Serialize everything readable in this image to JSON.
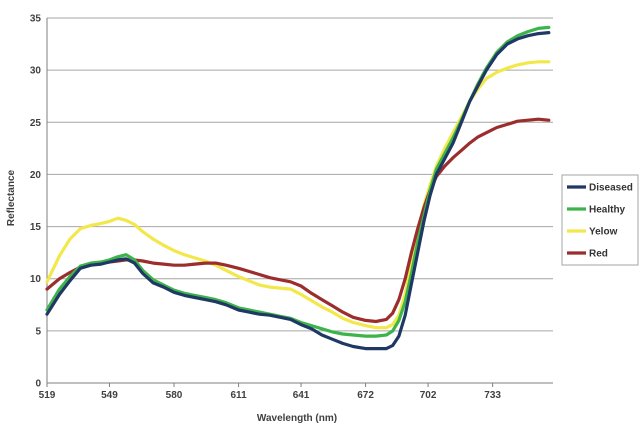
{
  "chart_data": {
    "type": "line",
    "title": "",
    "xlabel": "Wavelength (nm)",
    "ylabel": "Reflectance",
    "xlim": [
      519,
      762
    ],
    "ylim": [
      0,
      35
    ],
    "x_ticks": [
      519,
      549,
      580,
      611,
      641,
      672,
      702,
      733
    ],
    "y_ticks": [
      0,
      5,
      10,
      15,
      20,
      25,
      30,
      35
    ],
    "grid": "horizontal",
    "legend_position": "right",
    "series": [
      {
        "name": "Diseased",
        "color": "#1f3864",
        "x": [
          519,
          525,
          530,
          535,
          540,
          545,
          549,
          553,
          557,
          561,
          565,
          570,
          575,
          580,
          585,
          590,
          595,
          600,
          605,
          611,
          616,
          621,
          626,
          631,
          636,
          641,
          646,
          651,
          656,
          661,
          666,
          672,
          677,
          682,
          685,
          688,
          691,
          694,
          697,
          700,
          703,
          706,
          710,
          714,
          718,
          722,
          726,
          730,
          735,
          740,
          745,
          750,
          755,
          760
        ],
        "y": [
          6.6,
          8.5,
          9.8,
          11.0,
          11.3,
          11.4,
          11.6,
          11.8,
          11.9,
          11.5,
          10.5,
          9.6,
          9.2,
          8.7,
          8.4,
          8.2,
          8.0,
          7.8,
          7.5,
          7.0,
          6.8,
          6.6,
          6.5,
          6.3,
          6.1,
          5.6,
          5.2,
          4.6,
          4.2,
          3.8,
          3.5,
          3.3,
          3.3,
          3.3,
          3.6,
          4.5,
          6.5,
          9.5,
          12.5,
          15.5,
          18.0,
          20.0,
          21.5,
          23.0,
          25.0,
          27.0,
          28.5,
          30.0,
          31.5,
          32.5,
          33.0,
          33.3,
          33.5,
          33.6
        ]
      },
      {
        "name": "Healthy",
        "color": "#3cb44b",
        "x": [
          519,
          525,
          530,
          535,
          540,
          545,
          549,
          553,
          557,
          561,
          565,
          570,
          575,
          580,
          585,
          590,
          595,
          600,
          605,
          611,
          616,
          621,
          626,
          631,
          636,
          641,
          646,
          651,
          656,
          661,
          666,
          672,
          677,
          682,
          685,
          688,
          691,
          694,
          697,
          700,
          703,
          706,
          710,
          714,
          718,
          722,
          726,
          730,
          735,
          740,
          745,
          750,
          755,
          760
        ],
        "y": [
          7.0,
          9.0,
          10.2,
          11.2,
          11.5,
          11.6,
          11.8,
          12.1,
          12.3,
          11.8,
          10.8,
          9.9,
          9.4,
          8.9,
          8.6,
          8.4,
          8.2,
          8.0,
          7.7,
          7.2,
          7.0,
          6.8,
          6.6,
          6.4,
          6.2,
          5.8,
          5.5,
          5.2,
          4.9,
          4.7,
          4.6,
          4.5,
          4.5,
          4.6,
          5.0,
          6.0,
          7.8,
          10.5,
          13.5,
          16.0,
          18.5,
          20.5,
          22.0,
          23.5,
          25.2,
          27.0,
          28.7,
          30.2,
          31.7,
          32.7,
          33.3,
          33.7,
          34.0,
          34.1
        ]
      },
      {
        "name": "Yelow",
        "color": "#f2e84b",
        "x": [
          519,
          525,
          530,
          535,
          540,
          545,
          549,
          553,
          557,
          561,
          565,
          570,
          575,
          580,
          585,
          590,
          595,
          600,
          605,
          611,
          616,
          621,
          626,
          631,
          636,
          641,
          646,
          651,
          656,
          661,
          666,
          672,
          677,
          682,
          685,
          688,
          691,
          694,
          697,
          700,
          703,
          706,
          710,
          714,
          718,
          722,
          726,
          730,
          735,
          740,
          745,
          750,
          755,
          760
        ],
        "y": [
          9.7,
          12.2,
          13.8,
          14.8,
          15.1,
          15.3,
          15.5,
          15.8,
          15.6,
          15.2,
          14.5,
          13.8,
          13.2,
          12.7,
          12.3,
          12.0,
          11.7,
          11.3,
          10.8,
          10.2,
          9.8,
          9.4,
          9.2,
          9.1,
          9.0,
          8.5,
          7.9,
          7.3,
          6.8,
          6.2,
          5.8,
          5.5,
          5.3,
          5.3,
          5.6,
          6.5,
          8.5,
          11.5,
          14.5,
          17.0,
          19.0,
          20.8,
          22.5,
          24.0,
          25.5,
          27.0,
          28.2,
          29.2,
          29.8,
          30.2,
          30.5,
          30.7,
          30.8,
          30.8
        ]
      },
      {
        "name": "Red",
        "color": "#9b2d2d",
        "x": [
          519,
          525,
          530,
          535,
          540,
          545,
          549,
          553,
          557,
          561,
          565,
          570,
          575,
          580,
          585,
          590,
          595,
          600,
          605,
          611,
          616,
          621,
          626,
          631,
          636,
          641,
          646,
          651,
          656,
          661,
          666,
          672,
          677,
          682,
          685,
          688,
          691,
          694,
          697,
          700,
          703,
          706,
          710,
          714,
          718,
          722,
          726,
          730,
          735,
          740,
          745,
          750,
          755,
          760
        ],
        "y": [
          9.0,
          10.0,
          10.6,
          11.1,
          11.3,
          11.5,
          11.6,
          11.7,
          11.8,
          11.8,
          11.7,
          11.5,
          11.4,
          11.3,
          11.3,
          11.4,
          11.5,
          11.5,
          11.3,
          11.0,
          10.7,
          10.4,
          10.1,
          9.9,
          9.7,
          9.3,
          8.6,
          8.0,
          7.4,
          6.8,
          6.3,
          6.0,
          5.9,
          6.1,
          6.7,
          8.0,
          10.0,
          12.5,
          14.8,
          16.8,
          18.5,
          19.8,
          20.8,
          21.6,
          22.3,
          23.0,
          23.6,
          24.0,
          24.5,
          24.8,
          25.1,
          25.2,
          25.3,
          25.2
        ]
      }
    ]
  }
}
